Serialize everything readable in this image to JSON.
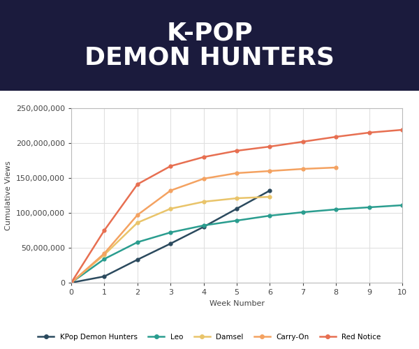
{
  "chart_data": {
    "type": "line",
    "title": "K-POP\nDEMON HUNTERS",
    "x_label": "Week Number",
    "y_label": "Cumulative Views",
    "x": [
      0,
      1,
      2,
      3,
      4,
      5,
      6,
      7,
      8,
      9,
      10
    ],
    "series": [
      {
        "name": "KPop Demon Hunters",
        "color": "#2b4a5e",
        "marker": "o",
        "line_style": "solid",
        "values": [
          0,
          9000000,
          33000000,
          56000000,
          80000000,
          106000000,
          132000000,
          null,
          null,
          null,
          null
        ]
      },
      {
        "name": "Leo",
        "color": "#2a9d8f",
        "marker": "o",
        "line_style": "solid",
        "values": [
          0,
          34000000,
          58000000,
          72000000,
          82000000,
          89000000,
          96000000,
          101000000,
          105000000,
          108000000,
          111000000
        ]
      },
      {
        "name": "Damsel",
        "color": "#e9c46a",
        "marker": "o",
        "line_style": "solid",
        "values": [
          0,
          40000000,
          86000000,
          106000000,
          116000000,
          121000000,
          123000000,
          null,
          null,
          null,
          null
        ]
      },
      {
        "name": "Carry-On",
        "color": "#f4a261",
        "marker": "o",
        "line_style": "solid",
        "values": [
          0,
          42000000,
          97000000,
          132000000,
          149000000,
          157000000,
          160000000,
          163000000,
          165000000,
          null,
          null
        ]
      },
      {
        "name": "Red Notice",
        "color": "#e76f51",
        "marker": "o",
        "line_style": "solid",
        "values": [
          0,
          75000000,
          141000000,
          167000000,
          180000000,
          189000000,
          195000000,
          202000000,
          209000000,
          215000000,
          219000000
        ]
      }
    ],
    "xlim": [
      0,
      10
    ],
    "xticks": [
      0,
      1,
      2,
      3,
      4,
      5,
      6,
      7,
      8,
      9,
      10
    ],
    "ylim": [
      0,
      250000000
    ],
    "yticks": [
      {
        "value": 0,
        "label": "0"
      },
      {
        "value": 50000000,
        "label": "50,000,000"
      },
      {
        "value": 100000000,
        "label": "100,000,000"
      },
      {
        "value": 150000000,
        "label": "150,000,000"
      },
      {
        "value": 200000000,
        "label": "200,000,000"
      },
      {
        "value": 250000000,
        "label": "250,000,000"
      }
    ],
    "grid": true,
    "legend": "lower center"
  }
}
